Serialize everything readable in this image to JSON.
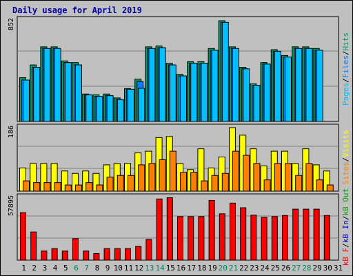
{
  "chart_data": {
    "type": "bar",
    "title": "Daily usage for April 2019",
    "x": [
      1,
      2,
      3,
      4,
      5,
      6,
      7,
      8,
      9,
      10,
      11,
      12,
      13,
      14,
      15,
      16,
      17,
      18,
      19,
      20,
      21,
      22,
      23,
      24,
      25,
      26,
      27,
      28,
      29,
      30,
      31
    ],
    "weekend_days": [
      6,
      7,
      13,
      14,
      20,
      21,
      27,
      28
    ],
    "colors": {
      "title": "#0000a0",
      "pages": "#00c0ff",
      "files": "#0080ff",
      "hits": "#00a060",
      "visits": "#ffff00",
      "sites": "#ff8000",
      "kbout": "#00a000",
      "kbin": "#0000c0",
      "kbf": "#ff0000",
      "weekend_tick": "#008060",
      "weekday_tick": "#000000",
      "frame": "#c0c0c0"
    },
    "panels": [
      {
        "id": "pages_files_hits",
        "ymax_label": "852",
        "ymax": 852,
        "legend": [
          {
            "label": "Pages",
            "color": "#00c0ff"
          },
          {
            "label": "/",
            "color": "#000000"
          },
          {
            "label": "Files",
            "color": "#0080ff"
          },
          {
            "label": "/",
            "color": "#000000"
          },
          {
            "label": "Hits",
            "color": "#00a060"
          }
        ],
        "series": [
          {
            "name": "Hits",
            "color": "#00a060",
            "values": [
              370,
              478,
              631,
              631,
              512,
              498,
              232,
              225,
              232,
              199,
              278,
              358,
              631,
              638,
              492,
              398,
              505,
              505,
              617,
              852,
              631,
              458,
              318,
              498,
              607,
              558,
              631,
              631,
              617,
              null,
              null
            ]
          },
          {
            "name": "Files",
            "color": "#0080ff",
            "values": [
              350,
              458,
              617,
              617,
              498,
              478,
              225,
              212,
              218,
              185,
              272,
              338,
              617,
              624,
              478,
              385,
              492,
              492,
              603,
              838,
              617,
              445,
              305,
              485,
              593,
              545,
              617,
              617,
              603,
              null,
              null
            ]
          },
          {
            "name": "Pages",
            "color": "#00c0ff",
            "values": [
              350,
              458,
              617,
              617,
              498,
              478,
              225,
              212,
              218,
              185,
              272,
              280,
              617,
              624,
              478,
              385,
              492,
              492,
              603,
              838,
              617,
              445,
              305,
              485,
              593,
              545,
              617,
              617,
              603,
              null,
              null
            ]
          }
        ]
      },
      {
        "id": "visits_sites",
        "ymax_label": "186",
        "ymax": 186,
        "legend": [
          {
            "label": "Sites",
            "color": "#ff8000"
          },
          {
            "label": "/",
            "color": "#000000"
          },
          {
            "label": "Visits",
            "color": "#ffff00"
          }
        ],
        "series": [
          {
            "name": "Visits",
            "color": "#ffff00",
            "values": [
              68,
              81,
              81,
              81,
              59,
              52,
              59,
              52,
              77,
              81,
              81,
              112,
              117,
              157,
              160,
              81,
              63,
              124,
              68,
              100,
              186,
              164,
              124,
              74,
              117,
              117,
              81,
              124,
              77,
              59,
              null
            ]
          },
          {
            "name": "Sites",
            "color": "#ff8000",
            "values": [
              30,
              25,
              25,
              25,
              18,
              18,
              25,
              18,
              41,
              46,
              46,
              77,
              81,
              92,
              117,
              55,
              55,
              30,
              46,
              52,
              117,
              105,
              81,
              33,
              81,
              81,
              46,
              81,
              33,
              18,
              null
            ]
          }
        ]
      },
      {
        "id": "kbf_kbin_kbout",
        "ymax_label": "57895",
        "ymax": 57895,
        "legend": [
          {
            "label": "kB F",
            "color": "#ff0000"
          },
          {
            "label": "/",
            "color": "#000000"
          },
          {
            "label": "kB In",
            "color": "#0000c0"
          },
          {
            "label": "/",
            "color": "#000000"
          },
          {
            "label": "kB Out",
            "color": "#00a000"
          }
        ],
        "series": [
          {
            "name": "kB F",
            "color": "#ff0000",
            "values": [
              43300,
              25700,
              8300,
              10500,
              8300,
              19600,
              8300,
              6000,
              10500,
              10500,
              10500,
              12500,
              18900,
              55800,
              57000,
              39700,
              39700,
              39700,
              54500,
              42300,
              52000,
              47800,
              41000,
              39100,
              39700,
              40700,
              46500,
              46500,
              46500,
              40700,
              null
            ]
          }
        ]
      }
    ]
  }
}
